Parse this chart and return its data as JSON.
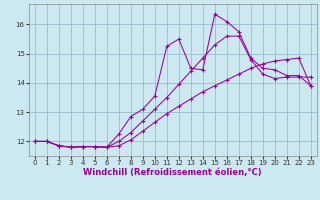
{
  "xlabel": "Windchill (Refroidissement éolien,°C)",
  "background_color": "#cce8f0",
  "line_color": "#990099",
  "grid_color": "#99bbcc",
  "xlim": [
    -0.5,
    23.5
  ],
  "ylim": [
    11.5,
    16.7
  ],
  "xticks": [
    0,
    1,
    2,
    3,
    4,
    5,
    6,
    7,
    8,
    9,
    10,
    11,
    12,
    13,
    14,
    15,
    16,
    17,
    18,
    19,
    20,
    21,
    22,
    23
  ],
  "yticks": [
    12,
    13,
    14,
    15,
    16
  ],
  "line1_x": [
    0,
    1,
    2,
    3,
    4,
    5,
    6,
    7,
    8,
    9,
    10,
    11,
    12,
    13,
    14,
    15,
    16,
    17,
    18,
    19,
    20,
    21,
    22,
    23
  ],
  "line1_y": [
    12.0,
    12.0,
    11.85,
    11.8,
    11.82,
    11.82,
    11.8,
    11.85,
    12.05,
    12.35,
    12.65,
    12.95,
    13.2,
    13.45,
    13.7,
    13.9,
    14.1,
    14.3,
    14.5,
    14.65,
    14.75,
    14.8,
    14.85,
    13.9
  ],
  "line2_x": [
    0,
    1,
    2,
    3,
    4,
    5,
    6,
    7,
    8,
    9,
    10,
    11,
    12,
    13,
    14,
    15,
    16,
    17,
    18,
    19,
    20,
    21,
    22,
    23
  ],
  "line2_y": [
    12.0,
    12.0,
    11.85,
    11.8,
    11.82,
    11.82,
    11.8,
    12.0,
    12.3,
    12.7,
    13.1,
    13.5,
    13.95,
    14.4,
    14.85,
    15.3,
    15.6,
    15.6,
    14.8,
    14.3,
    14.15,
    14.2,
    14.2,
    14.2
  ],
  "line3_x": [
    0,
    1,
    2,
    3,
    4,
    5,
    6,
    7,
    8,
    9,
    10,
    11,
    12,
    13,
    14,
    15,
    16,
    17,
    18,
    19,
    20,
    21,
    22,
    23
  ],
  "line3_y": [
    12.0,
    12.0,
    11.85,
    11.8,
    11.82,
    11.82,
    11.8,
    12.25,
    12.85,
    13.1,
    13.55,
    15.25,
    15.5,
    14.5,
    14.45,
    16.35,
    16.1,
    15.75,
    14.85,
    14.5,
    14.45,
    14.25,
    14.25,
    13.9
  ],
  "tick_fontsize": 5.0,
  "xlabel_fontsize": 6.0
}
